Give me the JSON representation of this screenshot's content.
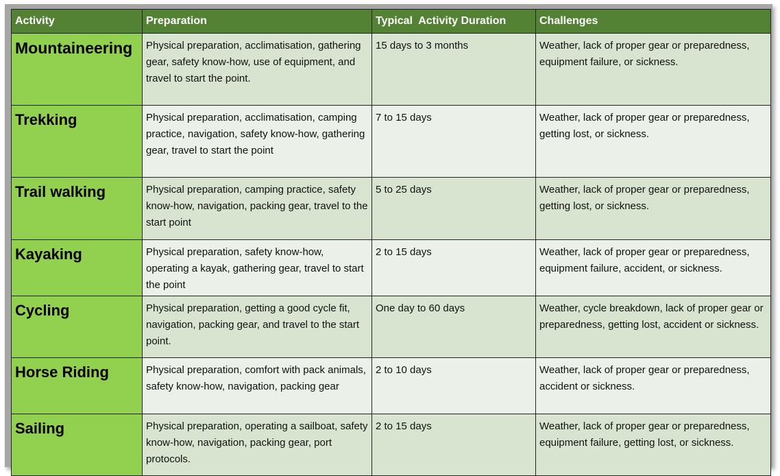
{
  "table": {
    "headers": [
      "Activity",
      "Preparation",
      "Typical  Activity Duration",
      "Challenges"
    ],
    "rows": [
      {
        "activity": "Mountaineering",
        "preparation": "Physical preparation, acclimatisation, gathering gear, safety know-how, use of equipment, and travel to start the point.",
        "duration": "15 days to 3 months",
        "challenges": "Weather, lack of proper gear or preparedness, equipment failure, or sickness."
      },
      {
        "activity": "Trekking",
        "preparation": "Physical preparation, acclimatisation, camping practice, navigation, safety know-how, gathering gear, travel to start the point",
        "duration": "7 to 15 days",
        "challenges": "Weather, lack of proper gear or preparedness, getting lost, or sickness."
      },
      {
        "activity": "Trail walking",
        "preparation": "Physical preparation, camping practice, safety know-how, navigation, packing gear, travel to the start point",
        "duration": "5 to 25 days",
        "challenges": "Weather, lack of proper gear or preparedness, getting lost, or sickness."
      },
      {
        "activity": "Kayaking",
        "preparation": "Physical preparation, safety know-how, operating a kayak, gathering gear, travel to start the point",
        "duration": "2 to 15 days",
        "challenges": "Weather, lack of proper gear or preparedness, equipment failure, accident, or sickness."
      },
      {
        "activity": "Cycling",
        "preparation": "Physical preparation, getting a good cycle fit, navigation, packing gear, and travel to the start point.",
        "duration": "One day to 60 days",
        "challenges": "Weather, cycle breakdown, lack of proper gear or preparedness, getting lost, accident or sickness."
      },
      {
        "activity": "Horse Riding",
        "preparation": "Physical preparation, comfort with pack animals, safety know-how, navigation, packing gear",
        "duration": "2 to 10 days",
        "challenges": "Weather, lack of proper gear or preparedness, accident or sickness."
      },
      {
        "activity": "Sailing",
        "preparation": "Physical preparation, operating a sailboat, safety know-how, navigation, packing gear, port protocols.",
        "duration": "2 to 15 days",
        "challenges": "Weather, lack of proper gear or preparedness, equipment failure, getting lost, or sickness."
      }
    ]
  },
  "colors": {
    "header": "#548235",
    "activity_column": "#92d050",
    "row_odd": "#d8e4d0",
    "row_even": "#ebf1e8",
    "frame": "#a6a6a6"
  }
}
